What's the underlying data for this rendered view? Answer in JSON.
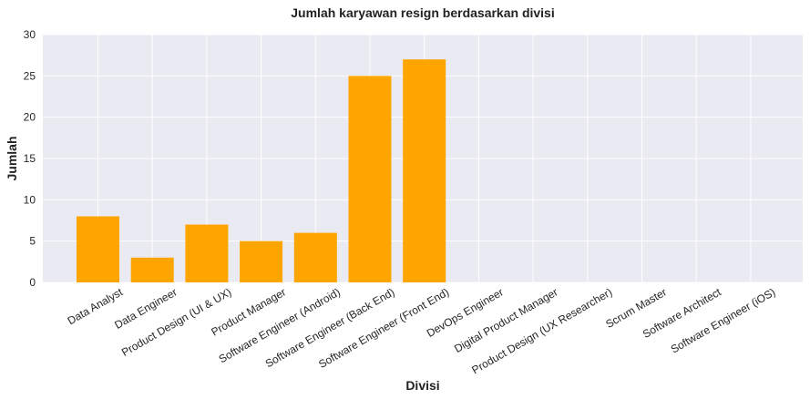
{
  "chart_data": {
    "type": "bar",
    "title": "Jumlah karyawan resign berdasarkan divisi",
    "xlabel": "Divisi",
    "ylabel": "Jumlah",
    "categories": [
      "Data Analyst",
      "Data Engineer",
      "Product Design (UI & UX)",
      "Product Manager",
      "Software Engineer (Android)",
      "Software Engineer (Back End)",
      "Software Engineer (Front End)",
      "DevOps Engineer",
      "Digital Product Manager",
      "Product Design (UX Researcher)",
      "Scrum Master",
      "Software Architect",
      "Software Engineer (iOS)"
    ],
    "values": [
      8,
      3,
      7,
      5,
      6,
      25,
      27,
      0,
      0,
      0,
      0,
      0,
      0
    ],
    "ylim": [
      0,
      30
    ],
    "yticks": [
      0,
      5,
      10,
      15,
      20,
      25,
      30
    ],
    "grid": true,
    "bar_color": "#FFA500",
    "background_color": "#EAEAF2",
    "grid_color": "#FFFFFF"
  }
}
